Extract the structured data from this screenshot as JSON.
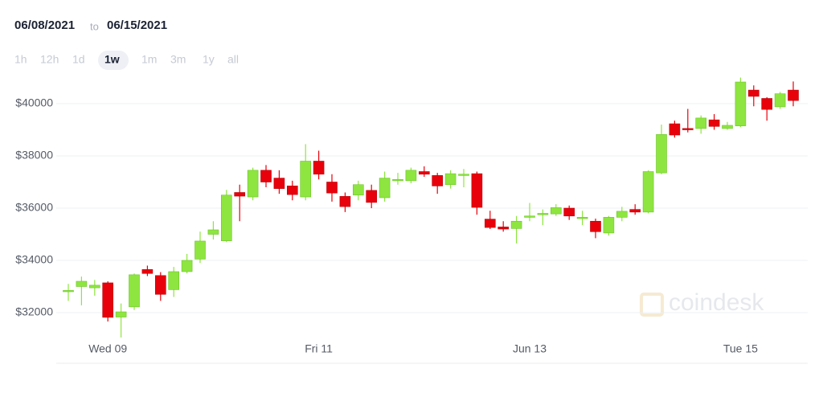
{
  "header": {
    "from": "06/08/2021",
    "separator": "to",
    "to": "06/15/2021"
  },
  "range_buttons": [
    "1h",
    "12h",
    "1d",
    "1w",
    "1m",
    "3m",
    "1y",
    "all"
  ],
  "selected_range": 3,
  "watermark": "coindesk",
  "chart_data": {
    "type": "candlestick",
    "categories": [
      null,
      null,
      null,
      "Wed 09",
      null,
      null,
      null,
      null,
      null,
      null,
      null,
      null,
      null,
      null,
      null,
      null,
      null,
      null,
      null,
      "Fri 11",
      null,
      null,
      null,
      null,
      null,
      null,
      null,
      null,
      null,
      null,
      null,
      null,
      null,
      null,
      null,
      "Jun 13",
      null,
      null,
      null,
      null,
      null,
      null,
      null,
      null,
      null,
      null,
      null,
      null,
      null,
      null,
      null,
      "Tue 15",
      null,
      null,
      null,
      null
    ],
    "open": [
      32800,
      33000,
      32950,
      33140,
      31830,
      32220,
      33650,
      33420,
      32880,
      33570,
      34050,
      35000,
      34750,
      36600,
      36430,
      37450,
      37150,
      36850,
      36430,
      37800,
      37000,
      36450,
      36500,
      36680,
      36400,
      37050,
      37050,
      37400,
      37250,
      36900,
      37250,
      37320,
      35580,
      35280,
      35220,
      35650,
      35750,
      35780,
      36000,
      35600,
      35500,
      35050,
      35650,
      35950,
      35850,
      37350,
      39230,
      39050,
      39050,
      39380,
      39050,
      39150,
      40520,
      40200,
      39880,
      40520
    ],
    "high": [
      33100,
      33380,
      33250,
      33200,
      32350,
      33500,
      33800,
      33550,
      33750,
      34250,
      35100,
      35500,
      36700,
      36900,
      37550,
      37650,
      37450,
      37050,
      38450,
      38200,
      37300,
      36600,
      37050,
      36900,
      37400,
      37350,
      37550,
      37600,
      37350,
      37450,
      37500,
      37400,
      35900,
      35500,
      35700,
      36200,
      35950,
      36150,
      36100,
      35900,
      35600,
      35700,
      36050,
      36150,
      37450,
      39200,
      39350,
      39800,
      39550,
      39600,
      39300,
      41000,
      40700,
      40250,
      40450,
      40850
    ],
    "low": [
      32450,
      32280,
      32650,
      31660,
      31050,
      32100,
      33400,
      32450,
      32600,
      33500,
      33900,
      34800,
      34700,
      35500,
      36300,
      36800,
      36550,
      36300,
      36300,
      37100,
      36250,
      35850,
      36300,
      36000,
      36250,
      36900,
      36950,
      37200,
      36550,
      36750,
      36800,
      35750,
      35200,
      35100,
      34650,
      35500,
      35350,
      35700,
      35550,
      35350,
      34850,
      34950,
      35500,
      35750,
      35800,
      37300,
      38700,
      38900,
      38850,
      39000,
      39000,
      39100,
      39900,
      39350,
      39800,
      39900
    ],
    "close": [
      32850,
      33200,
      33050,
      31820,
      32030,
      33450,
      33500,
      32700,
      33570,
      34000,
      34740,
      35170,
      36500,
      36460,
      37450,
      37000,
      36750,
      36520,
      37800,
      37300,
      36580,
      36060,
      36900,
      36220,
      37150,
      37100,
      37450,
      37300,
      36850,
      37320,
      37300,
      36030,
      35260,
      35200,
      35500,
      35700,
      35800,
      36020,
      35700,
      35650,
      35100,
      35650,
      35880,
      35850,
      37400,
      38820,
      38800,
      39000,
      39450,
      39130,
      39170,
      40830,
      40280,
      39780,
      40380,
      40120
    ],
    "up_color": "#8ee53f",
    "down_color": "#e8000b",
    "ylim": [
      31000,
      41000
    ],
    "yticks": [
      {
        "value": 32000,
        "label": "$32000"
      },
      {
        "value": 34000,
        "label": "$34000"
      },
      {
        "value": 36000,
        "label": "$36000"
      },
      {
        "value": 38000,
        "label": "$38000"
      },
      {
        "value": 40000,
        "label": "$40000"
      }
    ],
    "grid": true
  }
}
